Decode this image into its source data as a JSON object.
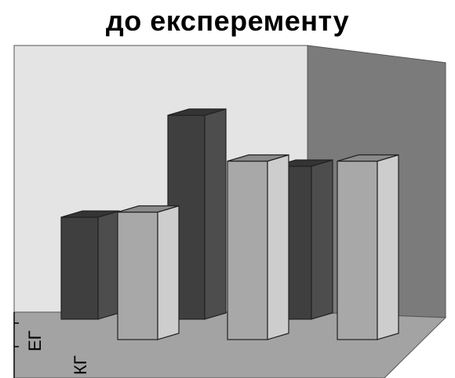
{
  "chart_data": {
    "type": "bar",
    "title": "до експеременту",
    "series": [
      {
        "name": "",
        "values": [
          4,
          8,
          6
        ],
        "color": "#3f3f3f"
      },
      {
        "name": "",
        "values": [
          5,
          7,
          7
        ],
        "color": "#a8a8a8"
      }
    ],
    "depth_labels": [
      "ЕГ",
      "КГ"
    ],
    "categories": [
      "",
      "",
      ""
    ],
    "ylim": [
      0,
      10
    ],
    "grid": false,
    "legend": "none",
    "colors": {
      "back_wall": "#e4e4e4",
      "side_wall": "#7b7b7b",
      "floor": "#a3a3a3"
    }
  }
}
